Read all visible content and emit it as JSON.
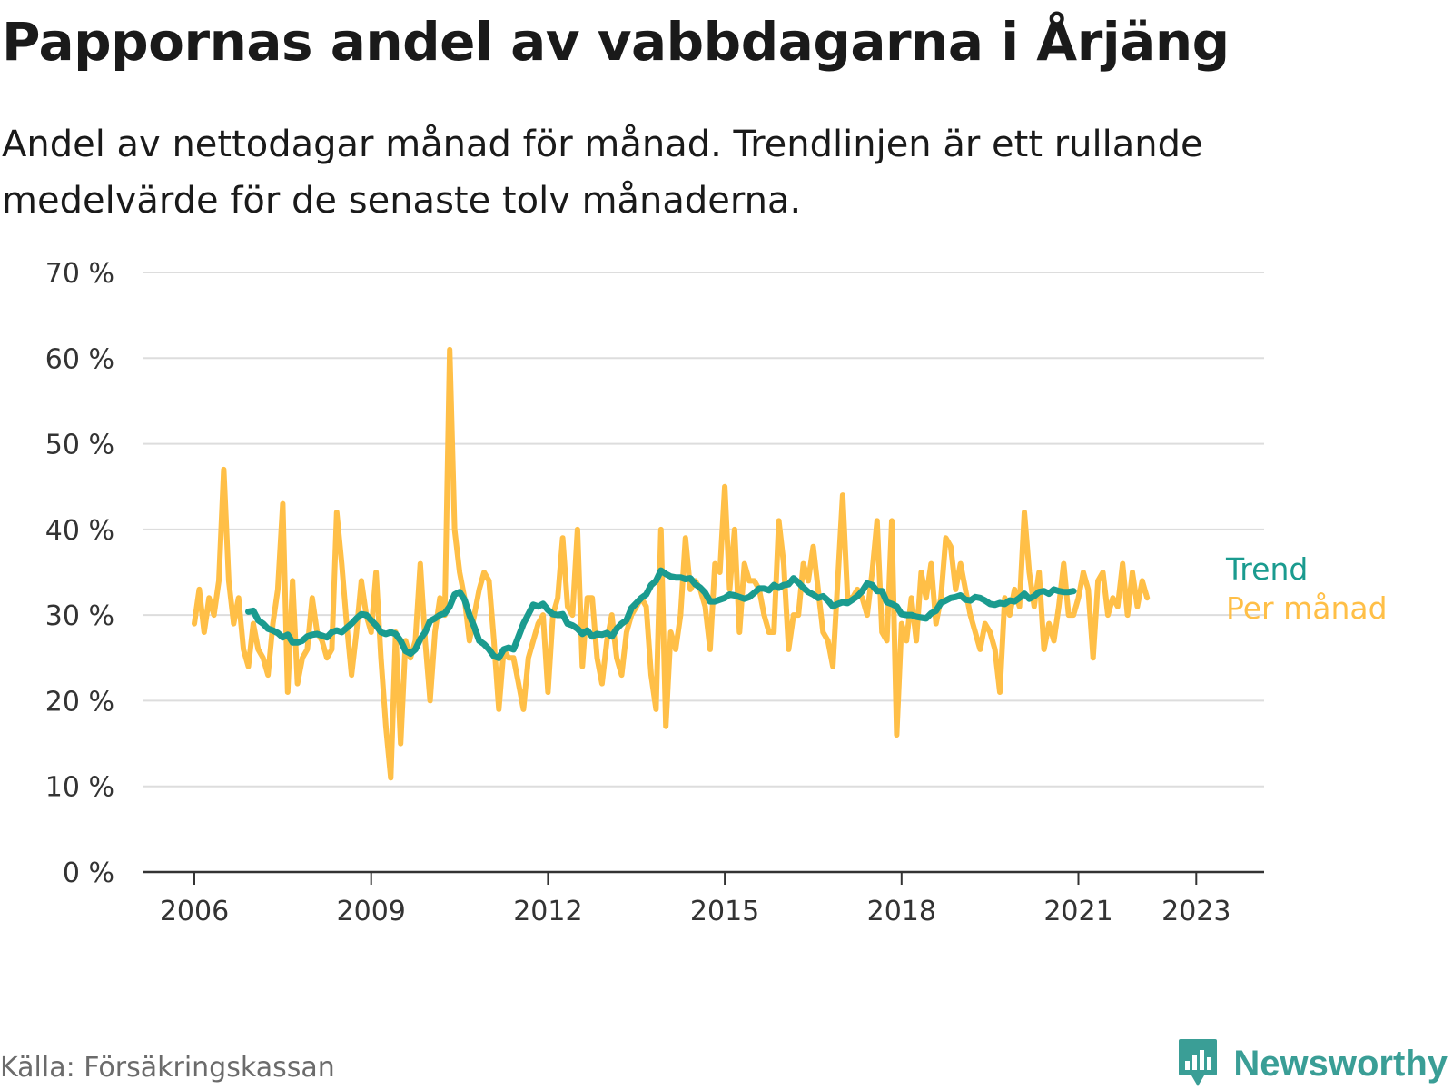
{
  "title": "Pappornas andel av vabbdagarna i Årjäng",
  "subtitle": "Andel av nettodagar månad för månad. Trendlinjen är ett rullande medelvärde för de senaste tolv månaderna.",
  "source": "Källa: Försäkringskassan",
  "brand": {
    "name": "Newsworthy",
    "logo_icon": "bar-chart-speech-bubble-icon",
    "color": "#3a9e96"
  },
  "colors": {
    "trend": "#1a9b8f",
    "monthly": "#ffbf47",
    "grid": "#dddddd",
    "axis": "#333333"
  },
  "chart_data": {
    "type": "line",
    "ylim": [
      0,
      70
    ],
    "y_ticks": [
      0,
      10,
      20,
      30,
      40,
      50,
      60,
      70
    ],
    "y_tick_labels": [
      "0 %",
      "10 %",
      "20 %",
      "30 %",
      "40 %",
      "50 %",
      "60 %",
      "70 %"
    ],
    "x_range": [
      2005.5,
      2024.5
    ],
    "x_ticks": [
      2006,
      2009,
      2012,
      2015,
      2018,
      2021,
      2023
    ],
    "x_tick_labels": [
      "2006",
      "2009",
      "2012",
      "2015",
      "2018",
      "2021",
      "2023"
    ],
    "grid": true,
    "legend_placement": "right-end",
    "series": [
      {
        "name": "Per månad",
        "color": "#ffbf47",
        "start": "2006-01",
        "values": [
          29,
          33,
          28,
          32,
          30,
          34,
          47,
          34,
          29,
          32,
          26,
          24,
          29,
          26,
          25,
          23,
          29,
          33,
          43,
          21,
          34,
          22,
          25,
          26,
          32,
          28,
          27,
          25,
          26,
          42,
          36,
          29,
          23,
          28,
          34,
          30,
          28,
          35,
          25,
          17,
          11,
          28,
          15,
          27,
          25,
          27,
          36,
          27,
          20,
          28,
          32,
          30,
          61,
          40,
          35,
          32,
          27,
          30,
          33,
          35,
          34,
          27,
          19,
          26,
          25,
          25,
          22,
          19,
          25,
          27,
          29,
          30,
          21,
          30,
          32,
          39,
          31,
          30,
          40,
          24,
          32,
          32,
          25,
          22,
          27,
          30,
          25,
          23,
          28,
          30,
          31,
          32,
          31,
          23,
          19,
          40,
          17,
          28,
          26,
          30,
          39,
          33,
          34,
          33,
          31,
          26,
          36,
          35,
          45,
          33,
          40,
          28,
          36,
          34,
          34,
          33,
          30,
          28,
          28,
          41,
          36,
          26,
          30,
          30,
          36,
          34,
          38,
          33,
          28,
          27,
          24,
          34,
          44,
          32,
          32,
          33,
          32,
          30,
          35,
          41,
          28,
          27,
          41,
          16,
          29,
          27,
          32,
          27,
          35,
          32,
          36,
          29,
          32,
          39,
          38,
          33,
          36,
          33,
          30,
          28,
          26,
          29,
          28,
          26,
          21,
          32,
          30,
          33,
          31,
          42,
          35,
          31,
          35,
          26,
          29,
          27,
          31,
          36,
          30,
          30,
          32,
          35,
          33,
          25,
          34,
          35,
          30,
          32,
          31,
          36,
          30,
          35,
          31,
          34,
          32
        ]
      },
      {
        "name": "Trend",
        "color": "#1a9b8f",
        "start": "2006-12",
        "values": [
          30.4,
          30.5,
          29.4,
          29.0,
          28.4,
          28.2,
          27.9,
          27.4,
          27.7,
          26.8,
          26.8,
          27.0,
          27.5,
          27.7,
          27.8,
          27.6,
          27.4,
          28.0,
          28.2,
          28.0,
          28.5,
          29.0,
          29.6,
          30.1,
          30.0,
          29.4,
          28.8,
          28.0,
          27.8,
          28.0,
          27.8,
          27.0,
          25.8,
          25.5,
          26.0,
          27.2,
          28.0,
          29.3,
          29.6,
          30.0,
          30.2,
          31.0,
          32.4,
          32.7,
          31.8,
          30.0,
          28.6,
          27.0,
          26.6,
          26.0,
          25.2,
          25.0,
          26.0,
          26.2,
          26.0,
          27.5,
          29.0,
          30.1,
          31.2,
          31.0,
          31.3,
          30.6,
          30.1,
          30.0,
          30.1,
          29.0,
          28.8,
          28.4,
          27.8,
          28.2,
          27.5,
          27.8,
          27.7,
          27.9,
          27.5,
          28.4,
          29.0,
          29.4,
          30.8,
          31.4,
          32.0,
          32.4,
          33.5,
          34.0,
          35.2,
          34.8,
          34.5,
          34.4,
          34.4,
          34.2,
          34.3,
          33.6,
          33.2,
          32.6,
          31.6,
          31.6,
          31.8,
          32.0,
          32.4,
          32.3,
          32.1,
          31.9,
          32.1,
          32.6,
          33.1,
          33.1,
          32.9,
          33.5,
          33.2,
          33.5,
          33.6,
          34.3,
          33.8,
          33.2,
          32.7,
          32.4,
          32.0,
          32.2,
          31.7,
          31.0,
          31.3,
          31.5,
          31.4,
          31.8,
          32.2,
          32.8,
          33.7,
          33.5,
          32.8,
          32.8,
          31.5,
          31.3,
          31.0,
          30.1,
          30.0,
          30.0,
          29.8,
          29.7,
          29.6,
          30.2,
          30.5,
          31.4,
          31.7,
          32.0,
          32.1,
          32.3,
          31.8,
          31.7,
          32.1,
          32.0,
          31.7,
          31.3,
          31.2,
          31.4,
          31.3,
          31.7,
          31.6,
          32.0,
          32.5,
          31.9,
          32.2,
          32.7,
          32.8,
          32.5,
          33.0,
          32.8,
          32.7,
          32.7,
          32.8
        ]
      }
    ]
  }
}
